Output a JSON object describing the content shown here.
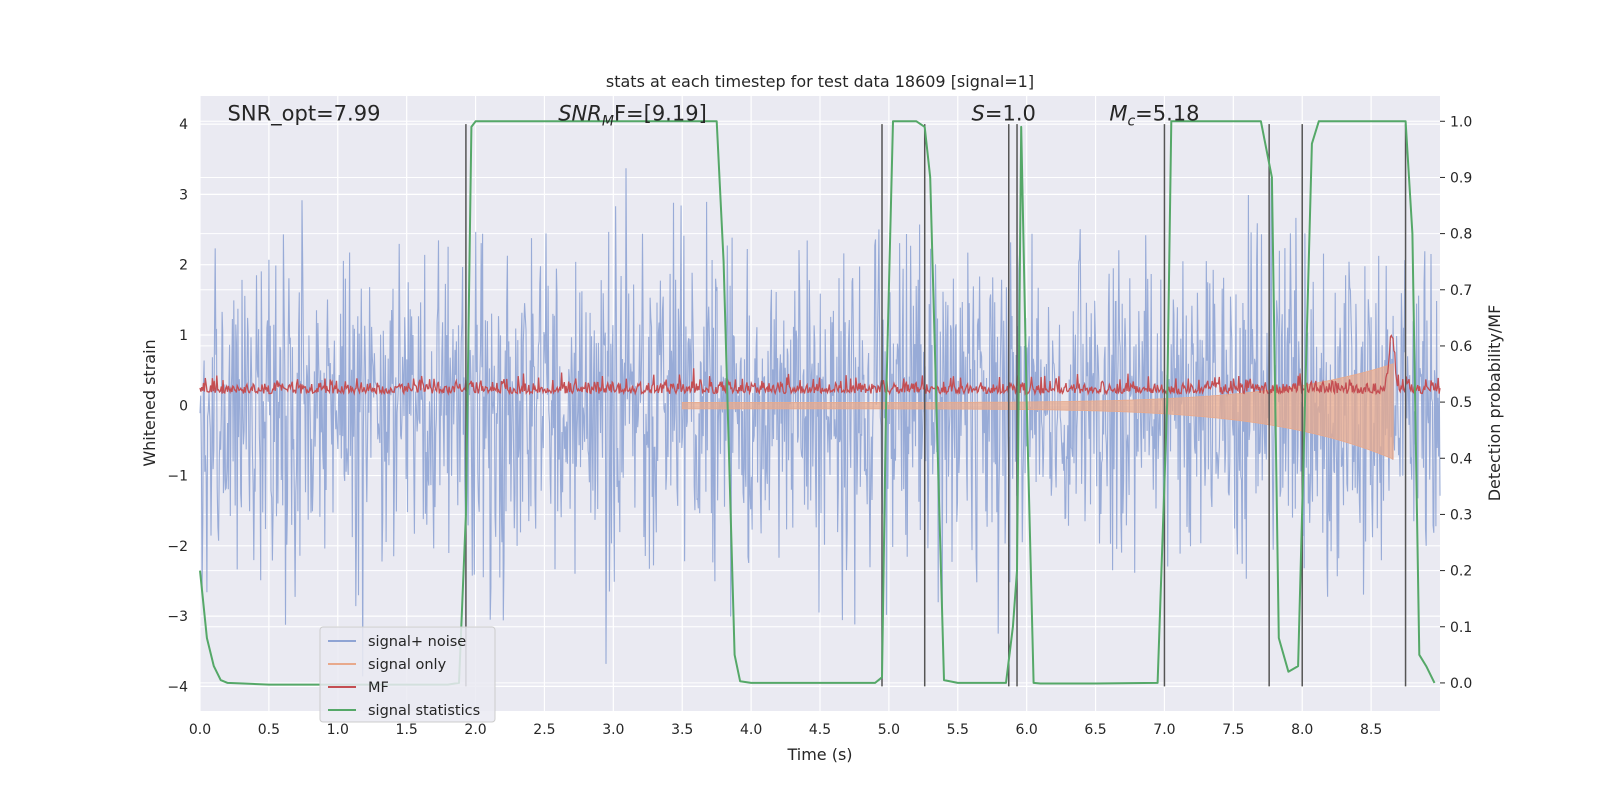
{
  "chart_data": {
    "type": "line",
    "title": "stats at each timestep for test data 18609 [signal=1]",
    "xlabel": "Time (s)",
    "ylabel_left": "Whitened strain",
    "ylabel_right": "Detection probability/MF",
    "xlim": [
      0,
      9.0
    ],
    "ylim_left": [
      -4.35,
      4.4
    ],
    "ylim_right": [
      -0.05,
      1.045
    ],
    "xticks": [
      "0.0",
      "0.5",
      "1.0",
      "1.5",
      "2.0",
      "2.5",
      "3.0",
      "3.5",
      "4.0",
      "4.5",
      "5.0",
      "5.5",
      "6.0",
      "6.5",
      "7.0",
      "7.5",
      "8.0",
      "8.5"
    ],
    "xtick_values": [
      0,
      0.5,
      1.0,
      1.5,
      2.0,
      2.5,
      3.0,
      3.5,
      4.0,
      4.5,
      5.0,
      5.5,
      6.0,
      6.5,
      7.0,
      7.5,
      8.0,
      8.5
    ],
    "yticks_left": [
      "−4",
      "−3",
      "−2",
      "−1",
      "0",
      "1",
      "2",
      "3",
      "4"
    ],
    "ytick_values_left": [
      -4,
      -3,
      -2,
      -1,
      0,
      1,
      2,
      3,
      4
    ],
    "yticks_right": [
      "0.0",
      "0.1",
      "0.2",
      "0.3",
      "0.4",
      "0.5",
      "0.6",
      "0.7",
      "0.8",
      "0.9",
      "1.0"
    ],
    "ytick_values_right": [
      0,
      0.1,
      0.2,
      0.3,
      0.4,
      0.5,
      0.6,
      0.7,
      0.8,
      0.9,
      1.0
    ],
    "annotations": [
      {
        "text": "SNR_opt=7.99",
        "x": 0.2,
        "y": 4.12
      },
      {
        "main": "SNR",
        "sub": "M",
        "rest": "F=[9.19]",
        "x": 2.6,
        "y": 4.12
      },
      {
        "main": "S",
        "sub": "",
        "rest": "=1.0",
        "x": 5.6,
        "y": 4.12
      },
      {
        "main": "M",
        "sub": "c",
        "rest": "=5.18",
        "x": 6.6,
        "y": 4.12
      }
    ],
    "legend": {
      "position": "lower-left",
      "entries": [
        {
          "label": "signal+ noise",
          "color": "#8fa4d4"
        },
        {
          "label": "signal only",
          "color": "#e8a98c"
        },
        {
          "label": "MF",
          "color": "#c44e52"
        },
        {
          "label": "signal statistics",
          "color": "#55a868"
        }
      ]
    },
    "colors": {
      "background": "#eaeaf2",
      "grid": "#ffffff",
      "noise": "#8fa4d4",
      "signal": "#e8a98c",
      "mf": "#c44e52",
      "stat": "#55a868",
      "vline": "#555555"
    },
    "series": [
      {
        "name": "signal statistics",
        "axis": "right",
        "x": [
          0.0,
          0.05,
          0.1,
          0.15,
          0.2,
          0.5,
          1.0,
          1.5,
          1.8,
          1.88,
          1.93,
          1.97,
          2.0,
          2.5,
          3.0,
          3.5,
          3.75,
          3.8,
          3.88,
          3.92,
          4.0,
          4.5,
          4.9,
          4.95,
          4.98,
          5.03,
          5.1,
          5.2,
          5.26,
          5.3,
          5.35,
          5.4,
          5.5,
          5.85,
          5.9,
          5.93,
          5.96,
          6.0,
          6.05,
          6.1,
          6.5,
          6.95,
          7.02,
          7.05,
          7.1,
          7.5,
          7.7,
          7.78,
          7.83,
          7.9,
          7.97,
          8.02,
          8.07,
          8.12,
          8.17,
          8.5,
          8.75,
          8.8,
          8.85,
          8.9,
          8.96
        ],
        "values": [
          0.2,
          0.08,
          0.03,
          0.005,
          0.0,
          -0.003,
          -0.003,
          -0.003,
          -0.003,
          0.0,
          0.3,
          0.99,
          1.0,
          1.0,
          1.0,
          1.0,
          1.0,
          0.75,
          0.05,
          0.003,
          0.0,
          0.0,
          0.0,
          0.01,
          0.5,
          1.0,
          1.0,
          1.0,
          0.99,
          0.9,
          0.45,
          0.005,
          0.0,
          0.0,
          0.1,
          0.2,
          0.99,
          0.5,
          0.0,
          -0.001,
          -0.001,
          0.0,
          0.5,
          1.0,
          1.0,
          1.0,
          1.0,
          0.9,
          0.08,
          0.02,
          0.03,
          0.5,
          0.96,
          1.0,
          1.0,
          1.0,
          1.0,
          0.8,
          0.05,
          0.03,
          0.0
        ]
      },
      {
        "name": "detections",
        "axis": "left",
        "x": [
          1.93,
          4.95,
          5.26,
          5.87,
          5.93,
          7.0,
          7.76,
          8.0,
          8.75
        ],
        "y_top": [
          4,
          4,
          4,
          4,
          4,
          4,
          4,
          4,
          4
        ],
        "y_bottom": [
          -4,
          -4,
          -4,
          -4,
          -4,
          -4,
          -4,
          -4,
          -4
        ]
      }
    ]
  }
}
